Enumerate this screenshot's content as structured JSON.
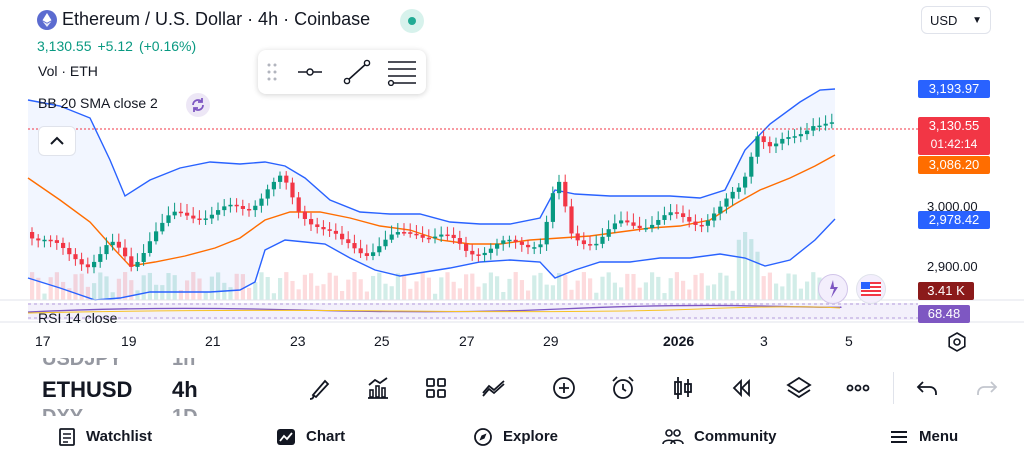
{
  "header": {
    "title": "Ethereum / U.S. Dollar · 4h · Coinbase",
    "price": "3,130.55",
    "change": "+5.12",
    "change_pct": "(+0.16%)",
    "currency": "USD"
  },
  "indicators": {
    "volume": "Vol · ETH",
    "bollinger": "BB 20 SMA close 2",
    "rsi": "RSI 14 close"
  },
  "price_labels": {
    "upper_band": "3,193.97",
    "last_price": "3,130.55",
    "countdown": "01:42:14",
    "basis": "3,086.20",
    "lower_band": "2,978.42",
    "volume": "3.41 K",
    "rsi": "68.48"
  },
  "y_axis": [
    "3,000.00",
    "2,900.00"
  ],
  "x_axis": [
    "17",
    "19",
    "21",
    "23",
    "25",
    "27",
    "29",
    "2026",
    "3",
    "5"
  ],
  "symbols": {
    "prev": "USDJPY",
    "prev_tf": "1h",
    "current": "ETHUSD",
    "current_tf": "4h",
    "next": "DXY",
    "next_tf": "1D"
  },
  "toolbar": [
    "brush-icon",
    "indicators-icon",
    "layout-icon",
    "compare-icon",
    "add-icon",
    "alert-icon",
    "candle-icon",
    "replay-icon",
    "layers-icon",
    "more-icon",
    "undo-icon",
    "redo-icon"
  ],
  "nav": {
    "watchlist": "Watchlist",
    "chart": "Chart",
    "explore": "Explore",
    "community": "Community",
    "menu": "Menu"
  },
  "colors": {
    "up": "#089981",
    "down": "#f23645",
    "band": "#2962ff",
    "basis": "#ff6d00",
    "rsi_badge": "#7e57c2",
    "vol_badge": "#8b1a1a"
  }
}
